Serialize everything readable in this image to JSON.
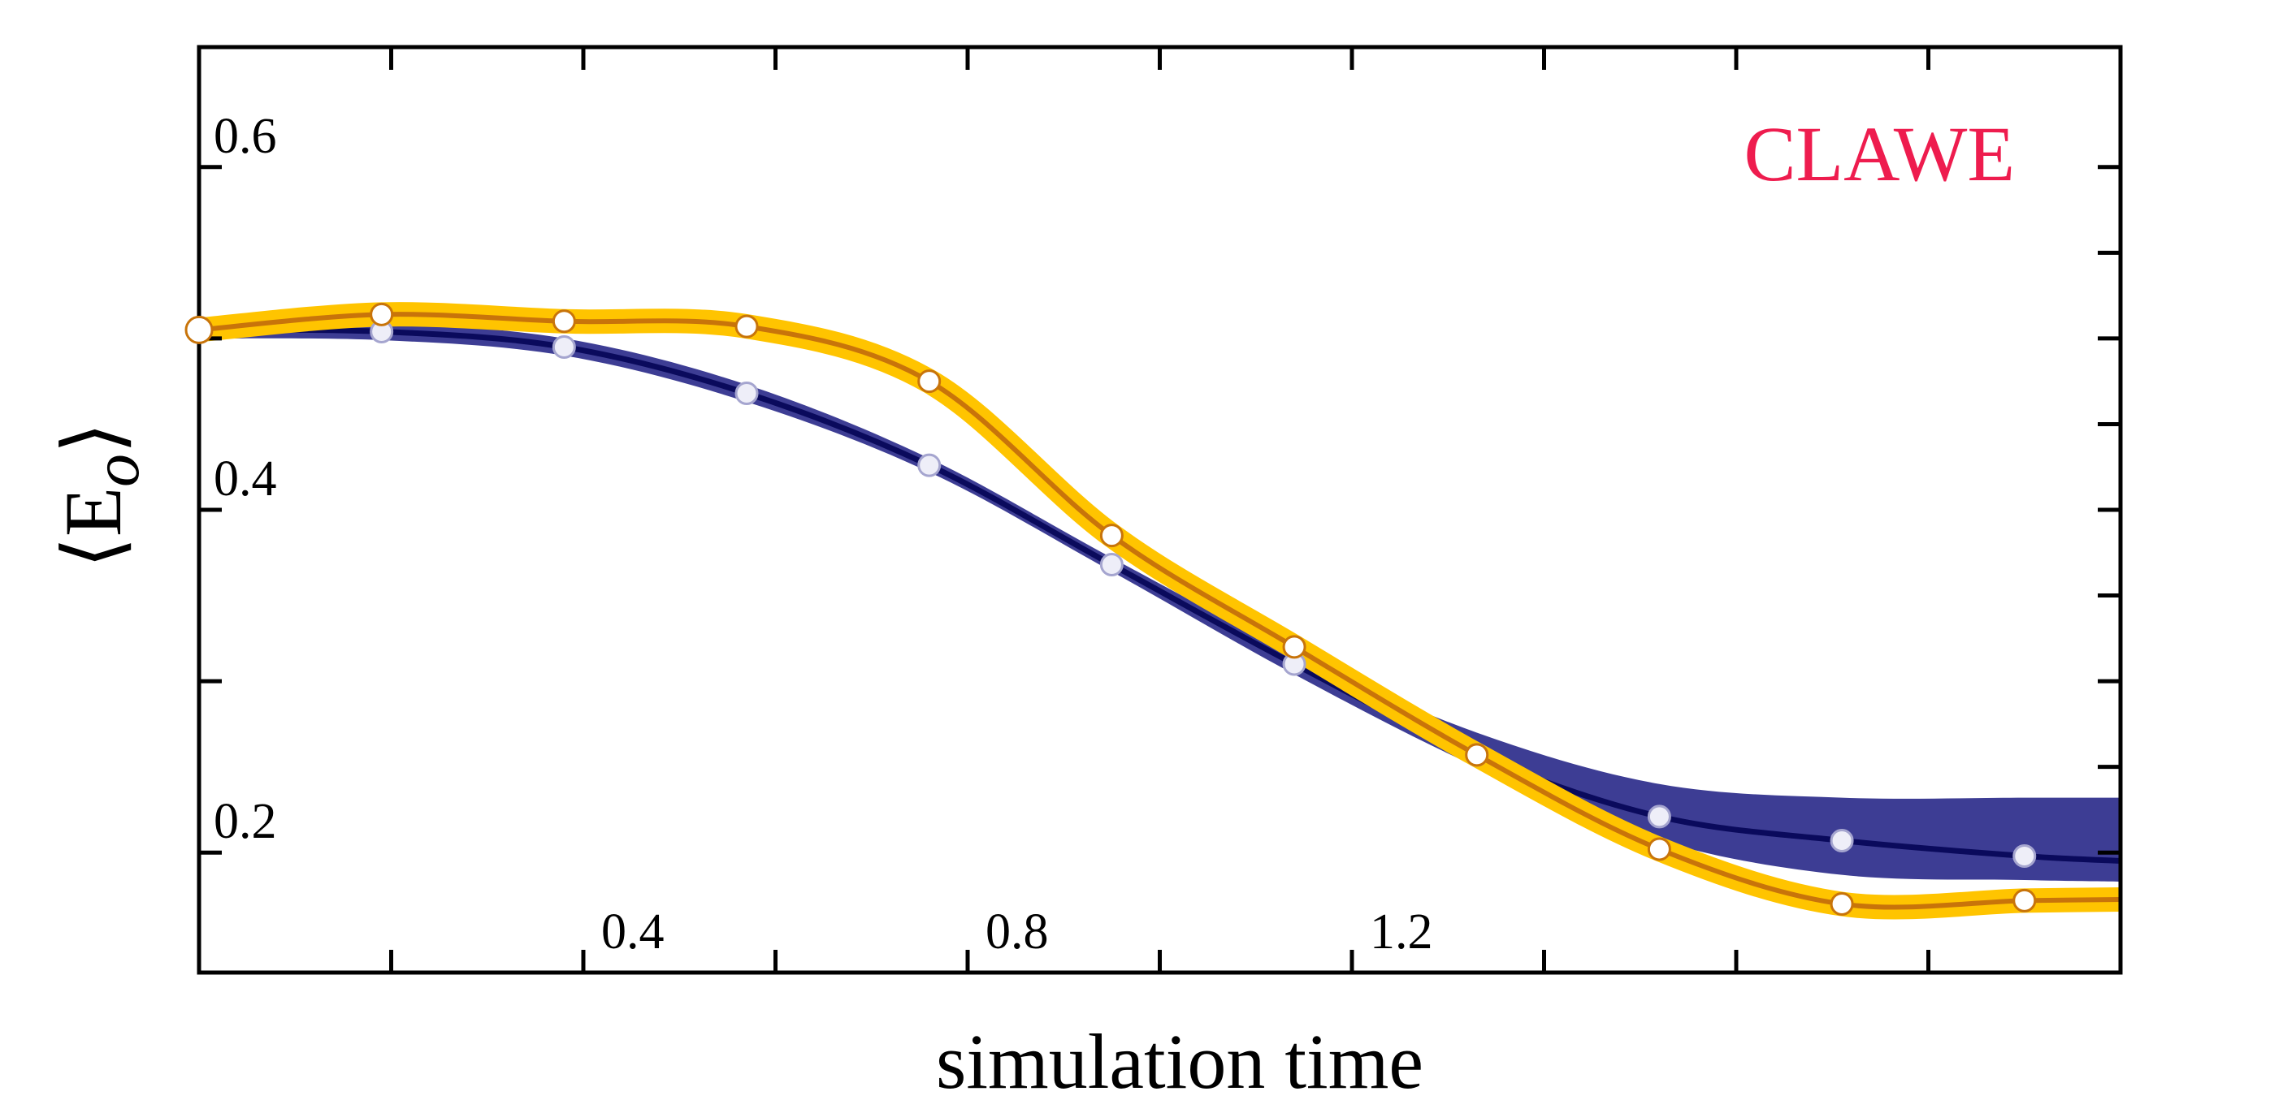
{
  "chart_data": {
    "type": "line",
    "title": "",
    "xlabel": "simulation time",
    "ylabel": "⟨E",
    "ylabel_sub": "o",
    "ylabel_close": "⟩",
    "annotation": "CLAWE",
    "xlim": [
      0.0,
      2.0
    ],
    "ylim": [
      0.13,
      0.67
    ],
    "xticks": [
      0.4,
      0.8,
      1.2
    ],
    "yticks": [
      0.2,
      0.4,
      0.6
    ],
    "grid": false,
    "colors": {
      "annotation": "#ee1c4e",
      "navy_line": "#0a0a5c",
      "navy_band": "#3d3d94",
      "gold_band": "#ffc400",
      "gold_line": "#c8740a",
      "axis": "#000000"
    },
    "series": [
      {
        "name": "navy",
        "x": [
          0.0,
          0.19,
          0.38,
          0.57,
          0.76,
          0.95,
          1.14,
          1.33,
          1.52,
          1.71,
          1.9
        ],
        "values": [
          0.505,
          0.504,
          0.495,
          0.468,
          0.426,
          0.368,
          0.31,
          0.257,
          0.221,
          0.207,
          0.198
        ],
        "band_upper": [
          0.51,
          0.509,
          0.5,
          0.473,
          0.43,
          0.372,
          0.316,
          0.27,
          0.24,
          0.232,
          0.232
        ],
        "band_lower": [
          0.5,
          0.499,
          0.49,
          0.463,
          0.422,
          0.364,
          0.304,
          0.25,
          0.207,
          0.187,
          0.184
        ]
      },
      {
        "name": "gold",
        "x": [
          0.0,
          0.19,
          0.38,
          0.57,
          0.76,
          0.95,
          1.14,
          1.33,
          1.52,
          1.71,
          1.9
        ],
        "values": [
          0.505,
          0.514,
          0.51,
          0.507,
          0.475,
          0.385,
          0.32,
          0.257,
          0.202,
          0.17,
          0.172
        ]
      }
    ]
  }
}
